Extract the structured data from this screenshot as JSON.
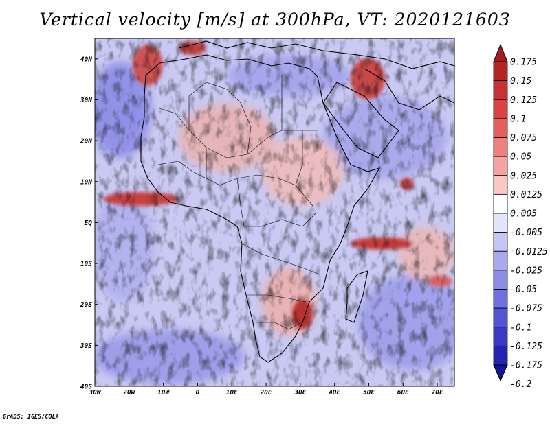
{
  "title": "Vertical velocity [m/s] at 300hPa, VT: 2020121603",
  "credit": "GrADS: IGES/COLA",
  "map": {
    "lon_range": [
      -30,
      75
    ],
    "lat_range": [
      -40,
      45
    ],
    "x_ticks": [
      "30W",
      "20W",
      "10W",
      "0",
      "10E",
      "20E",
      "30E",
      "40E",
      "50E",
      "60E",
      "70E"
    ],
    "y_ticks": [
      "40S",
      "30S",
      "20S",
      "10S",
      "EQ",
      "10N",
      "20N",
      "30N",
      "40N"
    ]
  },
  "colorbar": {
    "labels": [
      "0.175",
      "0.15",
      "0.125",
      "0.1",
      "0.075",
      "0.05",
      "0.025",
      "0.0125",
      "0.005",
      "-0.005",
      "-0.0125",
      "-0.025",
      "-0.05",
      "-0.075",
      "-0.1",
      "-0.125",
      "-0.175",
      "-0.2"
    ],
    "colors": [
      "#a41d20",
      "#b52528",
      "#c73234",
      "#d84344",
      "#e35f5e",
      "#ec8180",
      "#f3a3a2",
      "#f8c7c6",
      "#ffffff",
      "#e4e4fb",
      "#c6c6f4",
      "#a9a9ed",
      "#8d8de6",
      "#7070de",
      "#5353d4",
      "#3a3ac4",
      "#2424ae",
      "#141496"
    ]
  }
}
